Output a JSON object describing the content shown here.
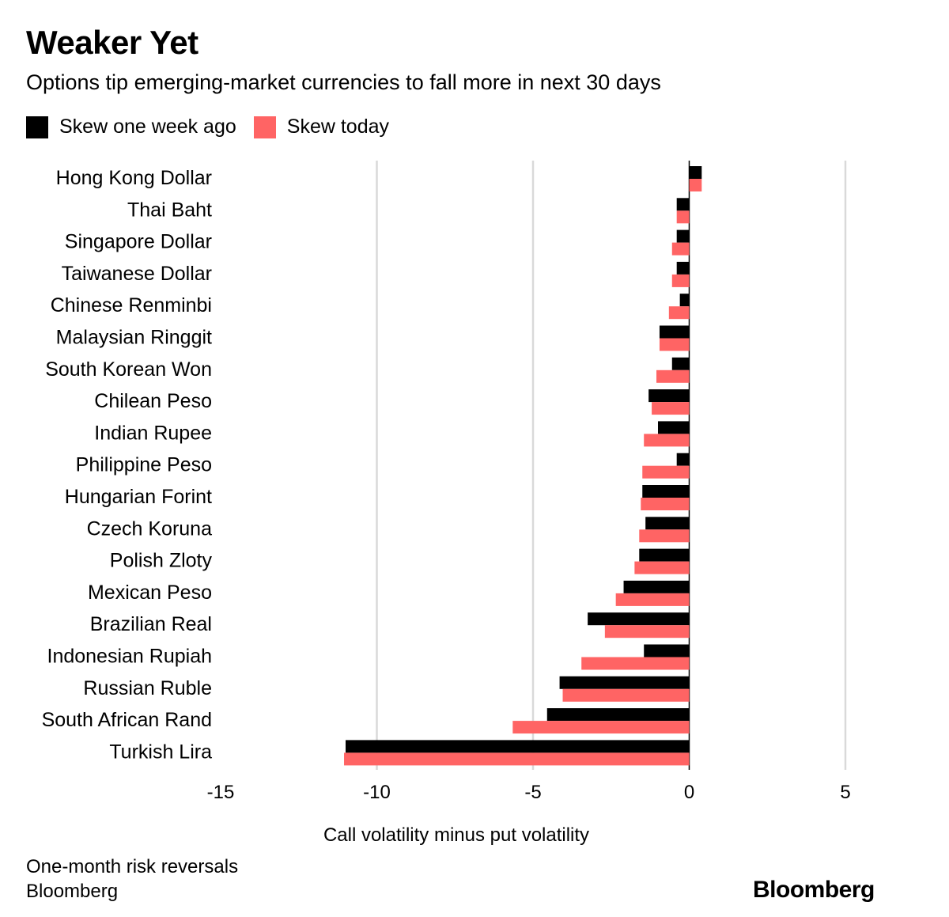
{
  "title": "Weaker Yet",
  "subtitle": "Options tip emerging-market currencies to fall more in next 30 days",
  "legend": [
    {
      "label": "Skew one week ago",
      "color": "#000000"
    },
    {
      "label": "Skew today",
      "color": "#ff6464"
    }
  ],
  "footer": {
    "note": "One-month risk reversals",
    "source": "Bloomberg",
    "brand": "Bloomberg"
  },
  "chart_data": {
    "type": "bar",
    "orientation": "horizontal",
    "title": "Weaker Yet",
    "xlabel": "Call volatility minus put volatility",
    "ylabel": "",
    "xlim": [
      -15,
      5
    ],
    "xticks": [
      -15,
      -10,
      -5,
      0,
      5
    ],
    "grid": true,
    "legend_position": "top-left",
    "categories": [
      "Hong Kong Dollar",
      "Thai Baht",
      "Singapore Dollar",
      "Taiwanese Dollar",
      "Chinese Renminbi",
      "Malaysian Ringgit",
      "South Korean Won",
      "Chilean Peso",
      "Indian Rupee",
      "Philippine Peso",
      "Hungarian Forint",
      "Czech Koruna",
      "Polish Zloty",
      "Mexican Peso",
      "Brazilian Real",
      "Indonesian Rupiah",
      "Russian Ruble",
      "South African Rand",
      "Turkish Lira"
    ],
    "series": [
      {
        "name": "Skew one week ago",
        "color": "#000000",
        "values": [
          0.4,
          -0.4,
          -0.4,
          -0.4,
          -0.3,
          -0.95,
          -0.55,
          -1.3,
          -1.0,
          -0.4,
          -1.5,
          -1.4,
          -1.6,
          -2.1,
          -3.25,
          -1.45,
          -4.15,
          -4.55,
          -11.0
        ]
      },
      {
        "name": "Skew today",
        "color": "#ff6464",
        "values": [
          0.4,
          -0.4,
          -0.55,
          -0.55,
          -0.65,
          -0.95,
          -1.05,
          -1.2,
          -1.45,
          -1.5,
          -1.55,
          -1.6,
          -1.75,
          -2.35,
          -2.7,
          -3.45,
          -4.05,
          -5.65,
          -11.05
        ]
      }
    ]
  }
}
